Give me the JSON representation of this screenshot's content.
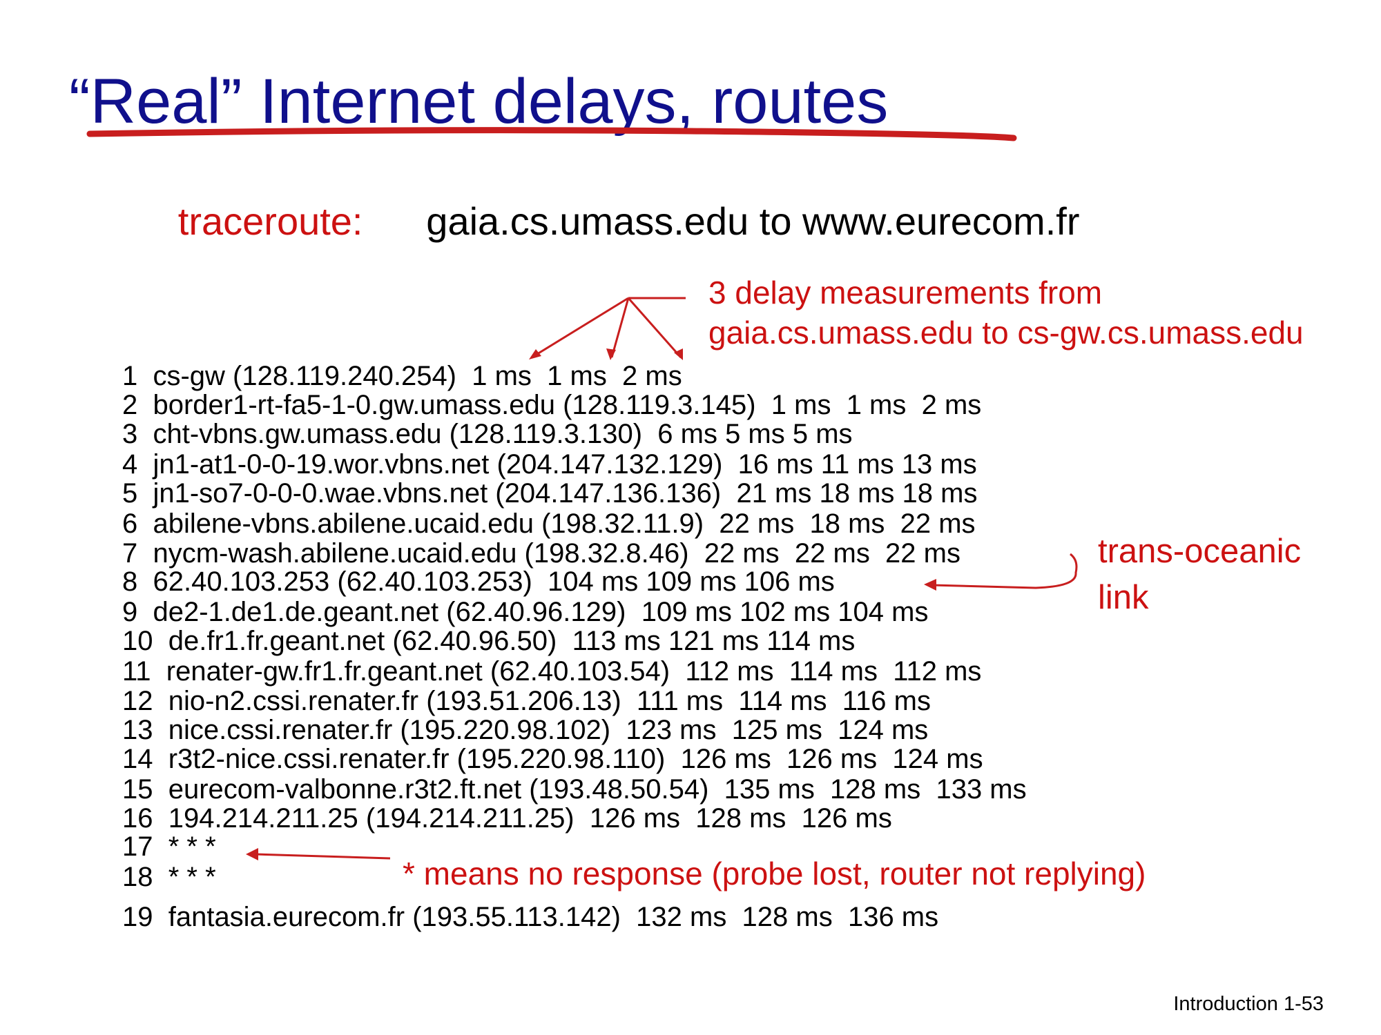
{
  "header": {
    "title": "“Real” Internet delays, routes"
  },
  "subtitle": {
    "label": "traceroute:",
    "text": "gaia.cs.umass.edu to www.eurecom.fr"
  },
  "annotations": {
    "delay": [
      "3 delay measurements from",
      "gaia.cs.umass.edu to cs-gw.cs.umass.edu"
    ],
    "oceanic": [
      "trans-oceanic",
      "link"
    ],
    "no_response": "* means no response (probe lost, router not replying)"
  },
  "trace": {
    "lines": [
      "1  cs-gw (128.119.240.254)  1 ms  1 ms  2 ms",
      "2  border1-rt-fa5-1-0.gw.umass.edu (128.119.3.145)  1 ms  1 ms  2 ms",
      "3  cht-vbns.gw.umass.edu (128.119.3.130)  6 ms 5 ms 5 ms",
      "4  jn1-at1-0-0-19.wor.vbns.net (204.147.132.129)  16 ms 11 ms 13 ms",
      "5  jn1-so7-0-0-0.wae.vbns.net (204.147.136.136)  21 ms 18 ms 18 ms",
      "6  abilene-vbns.abilene.ucaid.edu (198.32.11.9)  22 ms  18 ms  22 ms",
      "7  nycm-wash.abilene.ucaid.edu (198.32.8.46)  22 ms  22 ms  22 ms",
      "8  62.40.103.253 (62.40.103.253)  104 ms 109 ms 106 ms",
      "9  de2-1.de1.de.geant.net (62.40.96.129)  109 ms 102 ms 104 ms",
      "10  de.fr1.fr.geant.net (62.40.96.50)  113 ms 121 ms 114 ms",
      "11  renater-gw.fr1.fr.geant.net (62.40.103.54)  112 ms  114 ms  112 ms",
      "12  nio-n2.cssi.renater.fr (193.51.206.13)  111 ms  114 ms  116 ms",
      "13  nice.cssi.renater.fr (195.220.98.102)  123 ms  125 ms  124 ms",
      "14  r3t2-nice.cssi.renater.fr (195.220.98.110)  126 ms  126 ms  124 ms",
      "15  eurecom-valbonne.r3t2.ft.net (193.48.50.54)  135 ms  128 ms  133 ms",
      "16  194.214.211.25 (194.214.211.25)  126 ms  128 ms  126 ms",
      "17  * * *",
      "18  * * *",
      "19  fantasia.eurecom.fr (193.55.113.142)  132 ms  128 ms  136 ms"
    ]
  },
  "footer": "Introduction 1-53"
}
